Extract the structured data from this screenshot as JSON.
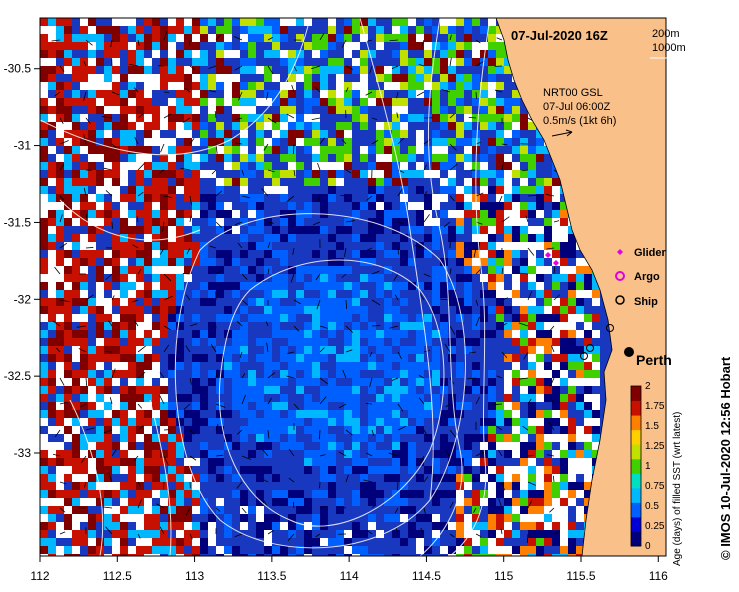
{
  "title": "07-Jul-2020 16Z",
  "depth_legend": {
    "line1": "200m",
    "line2": "1000m"
  },
  "current_info": {
    "line1": "NRT00 GSL",
    "line2": "07-Jul 06:00Z",
    "line3": "0.5m/s (1kt 6h)"
  },
  "legend": [
    {
      "label": "Glider",
      "symbol": "diamond",
      "color": "#e000e0"
    },
    {
      "label": "Argo",
      "symbol": "circle",
      "color": "#e000e0"
    },
    {
      "label": "Ship",
      "symbol": "circle",
      "color": "#000000"
    }
  ],
  "city": {
    "label": "Perth"
  },
  "x_axis": {
    "ticks": [
      112,
      112.5,
      113,
      113.5,
      114,
      114.5,
      115,
      115.5,
      116
    ],
    "labels": [
      "112",
      "112.5",
      "113",
      "113.5",
      "114",
      "114.5",
      "115",
      "115.5",
      "116"
    ]
  },
  "y_axis": {
    "ticks": [
      -30.5,
      -31,
      -31.5,
      -32,
      -32.5,
      -33
    ],
    "labels": [
      "-30.5",
      "-31",
      "-31.5",
      "-32",
      "-32.5",
      "-33"
    ]
  },
  "colorbar": {
    "title": "Age (days) of filled SST (wrt latest)",
    "ticks": [
      "0",
      "0.25",
      "0.5",
      "0.75",
      "1",
      "1.25",
      "1.5",
      "1.75",
      "2"
    ],
    "colors": [
      "#00007a",
      "#0000d8",
      "#0060ff",
      "#00b8ff",
      "#00e0c0",
      "#40d000",
      "#c0e000",
      "#ffd000",
      "#ff8000",
      "#c81000",
      "#800000"
    ]
  },
  "credit": "© IMOS 10-Jul-2020 12:56 Hobart",
  "colors": {
    "land": "#f9c08a",
    "ocean_base": "#1838c0",
    "contour": "#ffffff"
  }
}
